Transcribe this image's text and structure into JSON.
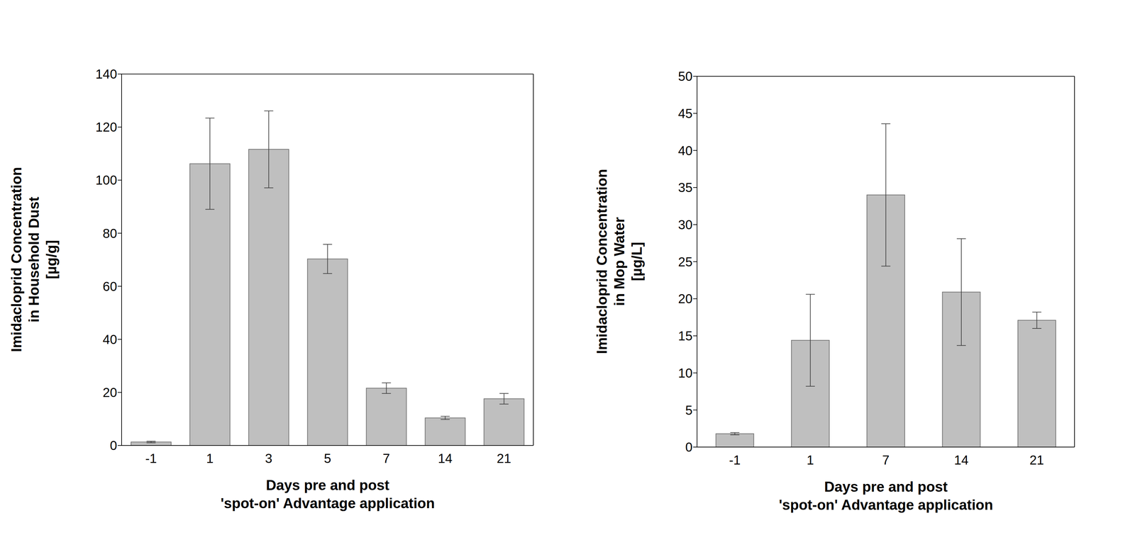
{
  "chart_data": [
    {
      "type": "bar",
      "y_label": "Imidacloprid Concentration\nin Household Dust\n[µg/g]",
      "x_label": "Days pre and post\n'spot-on' Advantage application",
      "categories": [
        "-1",
        "1",
        "3",
        "5",
        "7",
        "14",
        "21"
      ],
      "values": [
        1.3,
        106.2,
        111.6,
        70.3,
        21.6,
        10.4,
        17.6
      ],
      "error": [
        0.3,
        17.2,
        14.5,
        5.5,
        2.0,
        0.6,
        2.0
      ],
      "color": "#bfbfbf",
      "ylim": [
        0,
        140
      ],
      "yticks": [
        0,
        20,
        40,
        60,
        80,
        100,
        120,
        140
      ],
      "grid": false
    },
    {
      "type": "bar",
      "y_label": "Imidacloprid Concentration\nin Mop Water\n[µg/L]",
      "x_label": "Days pre and post\n'spot-on' Advantage application",
      "categories": [
        "-1",
        "1",
        "7",
        "14",
        "21"
      ],
      "values": [
        1.8,
        14.4,
        34.0,
        20.9,
        17.1
      ],
      "error": [
        0.15,
        6.2,
        9.6,
        7.2,
        1.1
      ],
      "color": "#bfbfbf",
      "ylim": [
        0,
        50
      ],
      "yticks": [
        0,
        5,
        10,
        15,
        20,
        25,
        30,
        35,
        40,
        45,
        50
      ],
      "grid": false
    }
  ]
}
